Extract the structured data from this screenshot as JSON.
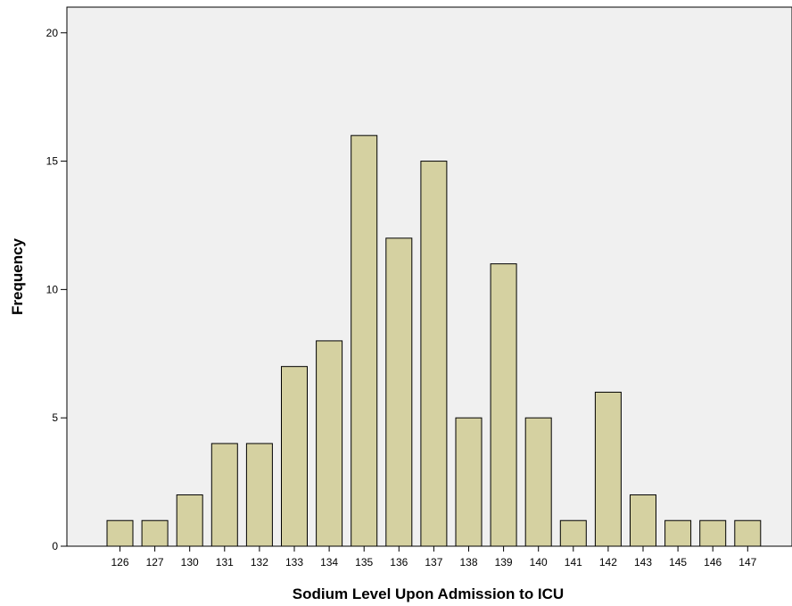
{
  "chart_data": {
    "type": "bar",
    "title": "",
    "xlabel": "Sodium Level Upon Admission to ICU",
    "ylabel": "Frequency",
    "categories": [
      "126",
      "127",
      "130",
      "131",
      "132",
      "133",
      "134",
      "135",
      "136",
      "137",
      "138",
      "139",
      "140",
      "141",
      "142",
      "143",
      "145",
      "146",
      "147"
    ],
    "values": [
      1,
      1,
      2,
      4,
      4,
      7,
      8,
      16,
      12,
      15,
      5,
      11,
      5,
      1,
      6,
      2,
      1,
      1,
      1
    ],
    "ylim": [
      0,
      21
    ],
    "yticks": [
      "0",
      "5",
      "10",
      "15",
      "20"
    ],
    "grid": false,
    "colors": {
      "bar_fill": "#d5d1a1",
      "bar_stroke": "#000000",
      "plot_background": "#f0f0f0"
    }
  }
}
